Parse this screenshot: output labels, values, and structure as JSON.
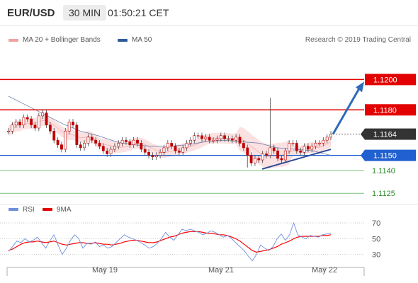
{
  "header": {
    "symbol": "EUR/USD",
    "timeframe": "30 MIN",
    "time": "01:50:21 CET"
  },
  "legend": {
    "ma20_label": "MA 20 + Bollinger Bands",
    "ma20_color": "#f08080",
    "ma50_label": "MA 50",
    "ma50_color": "#2e5a9a",
    "copyright": "Research © 2019 Trading Central"
  },
  "rsi_legend": {
    "rsi_label": "RSI",
    "rsi_color": "#6f8fdc",
    "ma9_label": "9MA",
    "ma9_color": "#ff0000"
  },
  "chart_data": [
    {
      "type": "line",
      "name": "price",
      "ylim": [
        1.11195,
        1.12235
      ],
      "levels": [
        {
          "value": 1.12,
          "label": "1.1200",
          "kind": "resistance",
          "color": "#e30000"
        },
        {
          "value": 1.118,
          "label": "1.1180",
          "kind": "resistance",
          "color": "#e30000"
        },
        {
          "value": 1.1164,
          "label": "1.1164",
          "kind": "last",
          "color": "#333333"
        },
        {
          "value": 1.115,
          "label": "1.1150",
          "kind": "pivot",
          "color": "#2060d0"
        },
        {
          "value": 1.114,
          "label": "1.1140",
          "kind": "support",
          "color": "#2e8b2e"
        },
        {
          "value": 1.1125,
          "label": "1.1125",
          "kind": "support",
          "color": "#2e8b2e"
        }
      ],
      "close": [
        1.1166,
        1.117,
        1.1172,
        1.117,
        1.1175,
        1.1174,
        1.117,
        1.1168,
        1.1176,
        1.1178,
        1.117,
        1.1166,
        1.116,
        1.1157,
        1.1154,
        1.1166,
        1.1172,
        1.117,
        1.1157,
        1.1155,
        1.1158,
        1.1162,
        1.116,
        1.1158,
        1.1156,
        1.1153,
        1.1151,
        1.1154,
        1.1156,
        1.1158,
        1.116,
        1.1159,
        1.1157,
        1.116,
        1.1158,
        1.1154,
        1.1152,
        1.115,
        1.1149,
        1.115,
        1.1152,
        1.1155,
        1.1158,
        1.1156,
        1.1153,
        1.1152,
        1.1155,
        1.1158,
        1.116,
        1.1163,
        1.1163,
        1.1161,
        1.1162,
        1.116,
        1.116,
        1.1161,
        1.1163,
        1.1161,
        1.1161,
        1.116,
        1.1162,
        1.1158,
        1.1155,
        1.115,
        1.1145,
        1.1148,
        1.1147,
        1.1151,
        1.115,
        1.1155,
        1.1153,
        1.1148,
        1.1147,
        1.1153,
        1.1158,
        1.1158,
        1.1153,
        1.1152,
        1.1156,
        1.1154,
        1.1156,
        1.1158,
        1.1158,
        1.116,
        1.1162,
        1.1164
      ],
      "high_extremes": {
        "max": 1.1188,
        "min": 1.1142
      },
      "ma50": [
        1.1189,
        1.1183,
        1.1177,
        1.1171,
        1.1166,
        1.1163,
        1.1159,
        1.1157,
        1.1156,
        1.1156,
        1.1157,
        1.1159,
        1.116,
        1.1159,
        1.1158,
        1.1155,
        1.1154,
        1.1153,
        1.115
      ],
      "trendline": {
        "from": 1.1141,
        "to": 1.1154
      },
      "projection": {
        "from": 1.1164,
        "to": 1.12
      },
      "x_ticks": [
        "May 19",
        "May 21",
        "May 22"
      ],
      "legend": [
        "MA 20 + Bollinger Bands",
        "MA 50"
      ],
      "legend_position": "top-left"
    },
    {
      "type": "line",
      "name": "rsi",
      "ylim": [
        19,
        79
      ],
      "yticks": [
        70,
        50,
        30
      ],
      "grid": true,
      "rsi": [
        34,
        40,
        47,
        45,
        50,
        46,
        48,
        52,
        45,
        38,
        47,
        55,
        42,
        30,
        38,
        48,
        55,
        50,
        38,
        44,
        43,
        46,
        40,
        42,
        38,
        40,
        45,
        50,
        55,
        52,
        50,
        48,
        45,
        42,
        38,
        40,
        44,
        50,
        58,
        52,
        48,
        55,
        62,
        60,
        62,
        60,
        58,
        55,
        57,
        60,
        58,
        55,
        52,
        54,
        50,
        45,
        40,
        35,
        28,
        22,
        30,
        42,
        38,
        35,
        40,
        50,
        56,
        48,
        55,
        70,
        55,
        52,
        50,
        54,
        53,
        52,
        55,
        56,
        57
      ],
      "ma9": [
        35,
        37,
        40,
        43,
        45,
        46,
        46,
        47,
        46,
        45,
        46,
        47,
        45,
        43,
        42,
        43,
        44,
        45,
        45,
        44,
        44,
        45,
        44,
        43,
        43,
        42,
        43,
        44,
        46,
        47,
        48,
        48,
        47,
        46,
        45,
        45,
        46,
        48,
        50,
        52,
        53,
        55,
        57,
        58,
        59,
        59,
        59,
        58,
        57,
        57,
        56,
        55,
        55,
        54,
        52,
        50,
        47,
        43,
        39,
        35,
        33,
        34,
        35,
        36,
        38,
        40,
        43,
        45,
        47,
        50,
        52,
        53,
        53,
        53,
        53,
        53,
        54,
        54,
        55
      ],
      "x_ticks": [
        "May 19",
        "May 21",
        "May 22"
      ],
      "legend": [
        "RSI",
        "9MA"
      ],
      "legend_position": "top-left"
    }
  ]
}
